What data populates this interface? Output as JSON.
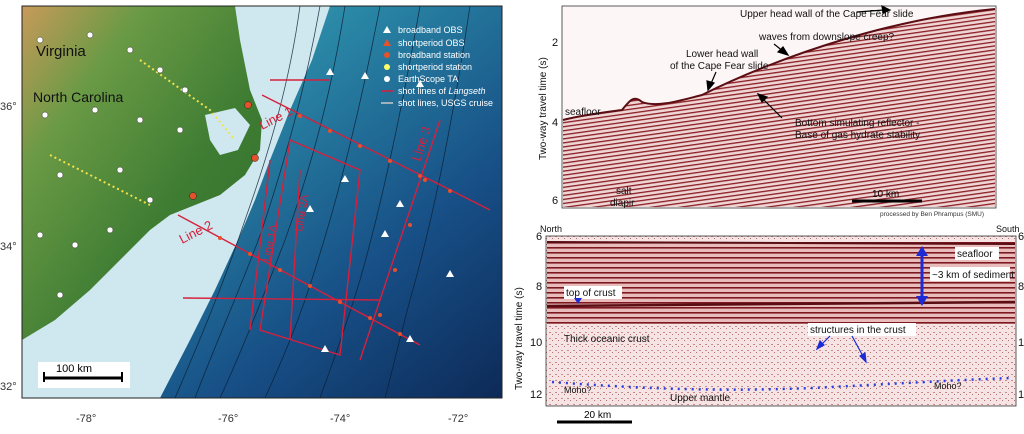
{
  "map": {
    "states": [
      "Virginia",
      "North Carolina"
    ],
    "lat_ticks": [
      "36°",
      "34°",
      "32°"
    ],
    "lon_ticks": [
      "-78°",
      "-76°",
      "-74°",
      "-72°"
    ],
    "scale_bar": "100 km",
    "line_labels": [
      "Line 1",
      "Line 2",
      "Line 3",
      "Line 1A",
      "Line 2A"
    ],
    "legend": [
      {
        "label": "broadband OBS",
        "symbol": "triangle",
        "color": "#ffffff"
      },
      {
        "label": "shortperiod OBS",
        "symbol": "triangle",
        "color": "#e8502a"
      },
      {
        "label": "broadband station",
        "symbol": "circle",
        "color": "#e8502a"
      },
      {
        "label": "shortperiod station",
        "symbol": "circle",
        "color": "#ffff66"
      },
      {
        "label": "EarthScope TA",
        "symbol": "circle",
        "color": "#ffffff"
      },
      {
        "label": "shot lines of Langseth",
        "symbol": "line",
        "color": "#d6203c"
      },
      {
        "label": "shot lines, USGS cruise",
        "symbol": "line",
        "color": "#c8c8c8"
      }
    ],
    "colors": {
      "land": "#4f8a3a",
      "shelf": "#cfe8ef",
      "deep": "#123a6e",
      "shot_line": "#d6203c"
    }
  },
  "top_section": {
    "ylabel": "Two-way travel time (s)",
    "yticks": [
      "2",
      "4",
      "6"
    ],
    "annotations": {
      "upper_head": "Upper head wall of the Cape Fear slide",
      "waves": "waves from downslope creep?",
      "lower_head_1": "Lower head wall",
      "lower_head_2": "of the Cape Fear slide",
      "seafloor": "seafloor",
      "bsr_1": "Bottom simulating reflector -",
      "bsr_2": "Base of gas hydrate stability",
      "salt_1": "salt",
      "salt_2": "diapir"
    },
    "scale_bar": "10 km",
    "credit": "processed by Ben Phrampus (SMU)"
  },
  "bottom_section": {
    "ylabel": "Two-way travel time (s)",
    "yticks": [
      "6",
      "8",
      "10",
      "12"
    ],
    "north": "North",
    "south": "South",
    "annotations": {
      "seafloor": "seafloor",
      "sediment": "~3 km of sediment",
      "top_crust": "top of crust",
      "thick_crust": "Thick oceanic crust",
      "structures": "structures in the crust",
      "moho_left": "Moho?",
      "moho_right": "Moho?",
      "upper_mantle": "Upper mantle"
    },
    "scale_bar": "20 km"
  }
}
